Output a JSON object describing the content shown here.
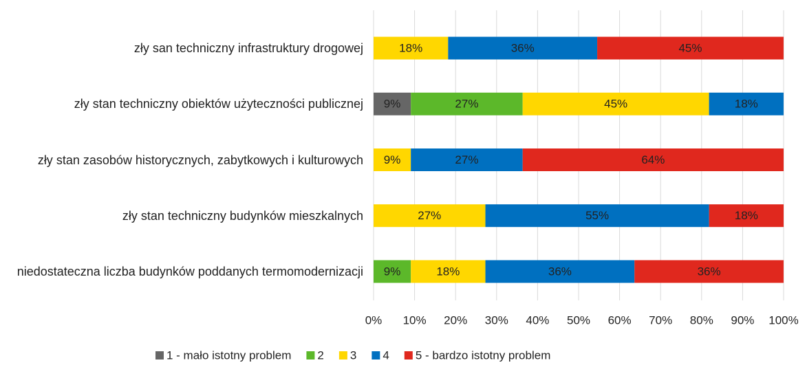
{
  "chart_data": {
    "type": "stacked_barh",
    "categories": [
      "zły san techniczny infrastruktury drogowej",
      "zły stan techniczny obiektów użyteczności publicznej",
      "zły stan zasobów historycznych, zabytkowych i kulturowych",
      "zły stan techniczny budynków mieszkalnych",
      "niedostateczna liczba budynków poddanych termomodernizacji"
    ],
    "series": [
      {
        "name": "1 - mało istotny problem",
        "color": "#666666",
        "values": [
          null,
          9.09,
          null,
          null,
          null
        ],
        "value_labels": [
          null,
          "9%",
          null,
          null,
          null
        ]
      },
      {
        "name": "2",
        "color": "#5cb82a",
        "values": [
          null,
          27.27,
          null,
          null,
          9.09
        ],
        "value_labels": [
          null,
          "27%",
          null,
          null,
          "9%"
        ]
      },
      {
        "name": "3",
        "color": "#ffd700",
        "values": [
          18.18,
          45.45,
          9.09,
          27.27,
          18.18
        ],
        "value_labels": [
          "18%",
          "45%",
          "9%",
          "27%",
          "18%"
        ]
      },
      {
        "name": "4",
        "color": "#0070c0",
        "values": [
          36.36,
          18.18,
          27.27,
          54.55,
          36.36
        ],
        "value_labels": [
          "36%",
          "18%",
          "27%",
          "55%",
          "36%"
        ]
      },
      {
        "name": "5 - bardzo istotny problem",
        "color": "#e0281e",
        "values": [
          45.45,
          null,
          63.64,
          18.18,
          36.36
        ],
        "value_labels": [
          "45%",
          null,
          "64%",
          "18%",
          "36%"
        ]
      }
    ],
    "xlim": [
      0,
      100
    ],
    "xticks": [
      {
        "value": 0,
        "label": "0%"
      },
      {
        "value": 10,
        "label": "10%"
      },
      {
        "value": 20,
        "label": "20%"
      },
      {
        "value": 30,
        "label": "30%"
      },
      {
        "value": 40,
        "label": "40%"
      },
      {
        "value": 50,
        "label": "50%"
      },
      {
        "value": 60,
        "label": "60%"
      },
      {
        "value": 70,
        "label": "70%"
      },
      {
        "value": 80,
        "label": "80%"
      },
      {
        "value": 90,
        "label": "90%"
      },
      {
        "value": 100,
        "label": "100%"
      }
    ],
    "grid": true,
    "legend": "bottom"
  }
}
